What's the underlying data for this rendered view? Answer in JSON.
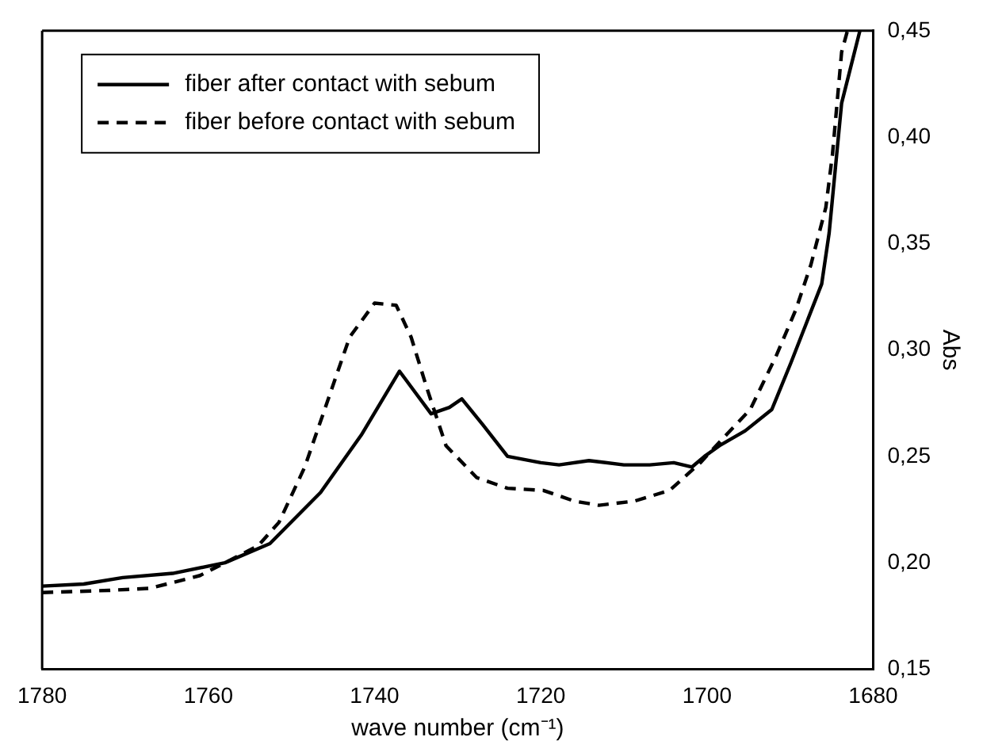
{
  "chart_data": {
    "type": "line",
    "xlabel": "wave number (cm⁻¹)",
    "ylabel": "Abs",
    "xlim": [
      1780,
      1680
    ],
    "xticks": [
      1780,
      1760,
      1740,
      1720,
      1700,
      1680
    ],
    "ylim": [
      0.15,
      0.45
    ],
    "yticks": [
      {
        "value": 0.15,
        "label": "0,15"
      },
      {
        "value": 0.2,
        "label": "0,20"
      },
      {
        "value": 0.25,
        "label": "0,25"
      },
      {
        "value": 0.3,
        "label": "0,30"
      },
      {
        "value": 0.35,
        "label": "0,35"
      },
      {
        "value": 0.4,
        "label": "0,40"
      },
      {
        "value": 0.45,
        "label": "0,45"
      }
    ],
    "grid": false,
    "legend": "top left",
    "marker": "none",
    "series": [
      {
        "name": "fiber after contact with sebum",
        "color": "#000000",
        "line_style": "solid",
        "x": [
          1780,
          1775,
          1770.3,
          1764.3,
          1758,
          1752.6,
          1746.5,
          1741.6,
          1737,
          1733.2,
          1731,
          1729.5,
          1727,
          1724,
          1720,
          1717.8,
          1714.2,
          1710,
          1706.9,
          1704,
          1701.8,
          1700.3,
          1698.5,
          1695.4,
          1692.2,
          1689.9,
          1688,
          1686.2,
          1685.3,
          1683.8,
          1681.6
        ],
        "values": [
          0.189,
          0.19,
          0.193,
          0.195,
          0.2,
          0.209,
          0.233,
          0.26,
          0.29,
          0.27,
          0.273,
          0.277,
          0.265,
          0.25,
          0.247,
          0.246,
          0.248,
          0.246,
          0.246,
          0.247,
          0.245,
          0.25,
          0.255,
          0.262,
          0.272,
          0.294,
          0.313,
          0.331,
          0.355,
          0.416,
          0.45
        ]
      },
      {
        "name": "fiber before contact with sebum",
        "color": "#000000",
        "line_style": "dashed",
        "x": [
          1780,
          1772,
          1767,
          1761,
          1754,
          1751.5,
          1748.4,
          1745.3,
          1743,
          1740,
          1737.4,
          1735.6,
          1733.7,
          1731.4,
          1727.7,
          1724,
          1719.7,
          1716,
          1713,
          1708.7,
          1704.5,
          1700.8,
          1697.7,
          1694.8,
          1691.7,
          1689.3,
          1687.5,
          1685.7,
          1684.9,
          1683.8,
          1683.1
        ],
        "values": [
          0.186,
          0.187,
          0.188,
          0.194,
          0.208,
          0.219,
          0.245,
          0.28,
          0.306,
          0.322,
          0.321,
          0.306,
          0.282,
          0.255,
          0.24,
          0.235,
          0.234,
          0.229,
          0.227,
          0.229,
          0.234,
          0.247,
          0.26,
          0.272,
          0.297,
          0.319,
          0.34,
          0.367,
          0.392,
          0.44,
          0.45
        ]
      }
    ]
  }
}
